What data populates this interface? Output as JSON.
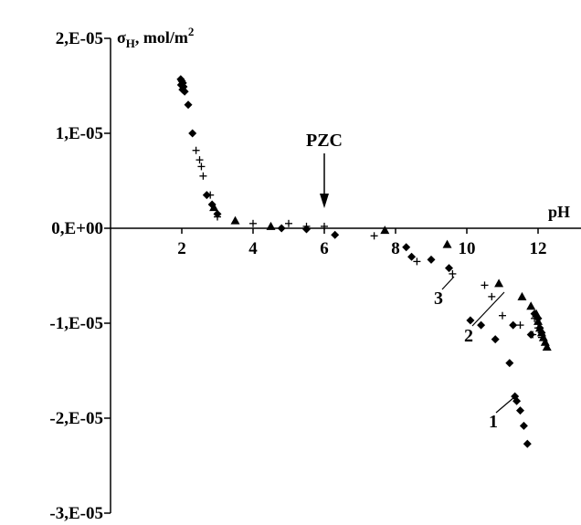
{
  "chart_data": {
    "type": "scatter",
    "ylabel_sigma": "σ",
    "ylabel_sub": "H",
    "ylabel_unit": ", mol/m",
    "ylabel_sup": "2",
    "xlabel": "pH",
    "xlim": [
      0,
      12.8
    ],
    "ylim": [
      -3e-05,
      2e-05
    ],
    "xticks": [
      {
        "value": 2,
        "label": "2"
      },
      {
        "value": 4,
        "label": "4"
      },
      {
        "value": 6,
        "label": "6"
      },
      {
        "value": 8,
        "label": "8"
      },
      {
        "value": 10,
        "label": "10"
      },
      {
        "value": 12,
        "label": "12"
      }
    ],
    "yticks": [
      {
        "value": 2e-05,
        "label": "2,E-05"
      },
      {
        "value": 1e-05,
        "label": "1,E-05"
      },
      {
        "value": 0,
        "label": "0,E+00"
      },
      {
        "value": -1e-05,
        "label": "-1,E-05"
      },
      {
        "value": -2e-05,
        "label": "-2,E-05"
      },
      {
        "value": -3e-05,
        "label": "-3,E-05"
      }
    ],
    "grid": false,
    "annotations": {
      "pzc": {
        "label": "PZC",
        "x": 6
      },
      "curve_labels": [
        {
          "label": "1",
          "x": 11.0,
          "y": -1.9e-05
        },
        {
          "label": "2",
          "x": 10.9,
          "y": -1e-05
        },
        {
          "label": "3",
          "x": 9.3,
          "y": -5.5e-06
        }
      ]
    },
    "series": [
      {
        "marker": "diamond",
        "points": [
          [
            1.97,
            1.57e-05
          ],
          [
            2.0,
            1.55e-05
          ],
          [
            2.03,
            1.53e-05
          ],
          [
            1.98,
            1.51e-05
          ],
          [
            2.05,
            1.49e-05
          ],
          [
            2.02,
            1.46e-05
          ],
          [
            2.08,
            1.44e-05
          ],
          [
            2.18,
            1.3e-05
          ],
          [
            2.3,
            1e-05
          ],
          [
            2.7,
            3.5e-06
          ],
          [
            2.85,
            2.5e-06
          ],
          [
            3.0,
            1.5e-06
          ],
          [
            4.8,
            0.0
          ],
          [
            5.5,
            -1e-07
          ],
          [
            6.3,
            -7e-07
          ],
          [
            8.3,
            -2e-06
          ],
          [
            8.45,
            -3e-06
          ],
          [
            9.0,
            -3.3e-06
          ],
          [
            9.5,
            -4.2e-06
          ],
          [
            10.1,
            -9.7e-06
          ],
          [
            10.4,
            -1.02e-05
          ],
          [
            10.8,
            -1.17e-05
          ],
          [
            11.2,
            -1.42e-05
          ],
          [
            11.35,
            -1.77e-05
          ],
          [
            11.4,
            -1.82e-05
          ],
          [
            11.5,
            -1.92e-05
          ],
          [
            11.6,
            -2.08e-05
          ],
          [
            11.7,
            -2.27e-05
          ],
          [
            11.9,
            -9e-06
          ],
          [
            12.0,
            -9.5e-06
          ],
          [
            12.05,
            -1.05e-05
          ],
          [
            12.1,
            -1.1e-05
          ],
          [
            11.3,
            -1.02e-05
          ],
          [
            11.8,
            -1.12e-05
          ]
        ]
      },
      {
        "marker": "plus",
        "points": [
          [
            2.4,
            8.2e-06
          ],
          [
            2.5,
            7.2e-06
          ],
          [
            2.55,
            6.5e-06
          ],
          [
            2.6,
            5.5e-06
          ],
          [
            2.8,
            3.5e-06
          ],
          [
            3.0,
            1.2e-06
          ],
          [
            4.0,
            5e-07
          ],
          [
            5.0,
            5e-07
          ],
          [
            5.5,
            2e-07
          ],
          [
            6.0,
            2e-07
          ],
          [
            7.4,
            -8e-07
          ],
          [
            8.6,
            -3.5e-06
          ],
          [
            9.6,
            -4.8e-06
          ],
          [
            10.5,
            -6e-06
          ],
          [
            10.7,
            -7.2e-06
          ],
          [
            11.0,
            -9.2e-06
          ],
          [
            11.5,
            -1.02e-05
          ],
          [
            11.85,
            -1.12e-05
          ],
          [
            12.0,
            -1.05e-05
          ],
          [
            12.1,
            -1.15e-05
          ],
          [
            11.9,
            -9.5e-06
          ]
        ]
      },
      {
        "marker": "triangle",
        "points": [
          [
            2.9,
            2.2e-06
          ],
          [
            3.5,
            8e-07
          ],
          [
            4.5,
            2e-07
          ],
          [
            7.7,
            -2e-07
          ],
          [
            9.45,
            -1.7e-06
          ],
          [
            10.9,
            -5.8e-06
          ],
          [
            11.55,
            -7.2e-06
          ],
          [
            11.8,
            -8.2e-06
          ],
          [
            11.95,
            -9e-06
          ],
          [
            12.0,
            -9.8e-06
          ],
          [
            12.05,
            -1.05e-05
          ],
          [
            12.1,
            -1.1e-05
          ],
          [
            12.15,
            -1.15e-05
          ],
          [
            12.2,
            -1.2e-05
          ],
          [
            12.25,
            -1.25e-05
          ]
        ]
      }
    ]
  }
}
